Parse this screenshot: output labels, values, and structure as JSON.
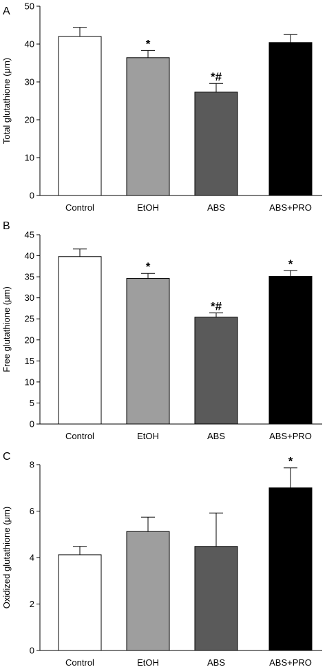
{
  "chart_data": [
    {
      "panel": "A",
      "type": "bar",
      "ylabel": "Total glutathione (μm)",
      "ylim": [
        0,
        50
      ],
      "yticks": [
        0,
        10,
        20,
        30,
        40,
        50
      ],
      "categories": [
        "Control",
        "EtOH",
        "ABS",
        "ABS+PRO"
      ],
      "values": [
        42,
        36.4,
        27.3,
        40.4
      ],
      "errors": [
        2.4,
        1.9,
        2.3,
        2.1
      ],
      "annotations": [
        "",
        "*",
        "*#",
        ""
      ],
      "colors": [
        "#ffffff",
        "#9e9e9e",
        "#5a5a5a",
        "#000000"
      ]
    },
    {
      "panel": "B",
      "type": "bar",
      "ylabel": "Free glutathione (μm)",
      "ylim": [
        0,
        45
      ],
      "yticks": [
        0,
        5,
        10,
        15,
        20,
        25,
        30,
        35,
        40,
        45
      ],
      "categories": [
        "Control",
        "EtOH",
        "ABS",
        "ABS+PRO"
      ],
      "values": [
        39.8,
        34.6,
        25.4,
        35.1
      ],
      "errors": [
        1.8,
        1.2,
        1.0,
        1.4
      ],
      "annotations": [
        "",
        "*",
        "*#",
        "*"
      ],
      "colors": [
        "#ffffff",
        "#9e9e9e",
        "#5a5a5a",
        "#000000"
      ]
    },
    {
      "panel": "C",
      "type": "bar",
      "ylabel": "Oxidized glutathione (μm)",
      "ylim": [
        0,
        8
      ],
      "yticks": [
        0,
        2,
        4,
        6,
        8
      ],
      "categories": [
        "Control",
        "EtOH",
        "ABS",
        "ABS+PRO"
      ],
      "values": [
        4.12,
        5.12,
        4.48,
        7.0
      ],
      "errors": [
        0.36,
        0.62,
        1.44,
        0.86
      ],
      "annotations": [
        "",
        "",
        "",
        "*"
      ],
      "colors": [
        "#ffffff",
        "#9e9e9e",
        "#5a5a5a",
        "#000000"
      ]
    }
  ]
}
